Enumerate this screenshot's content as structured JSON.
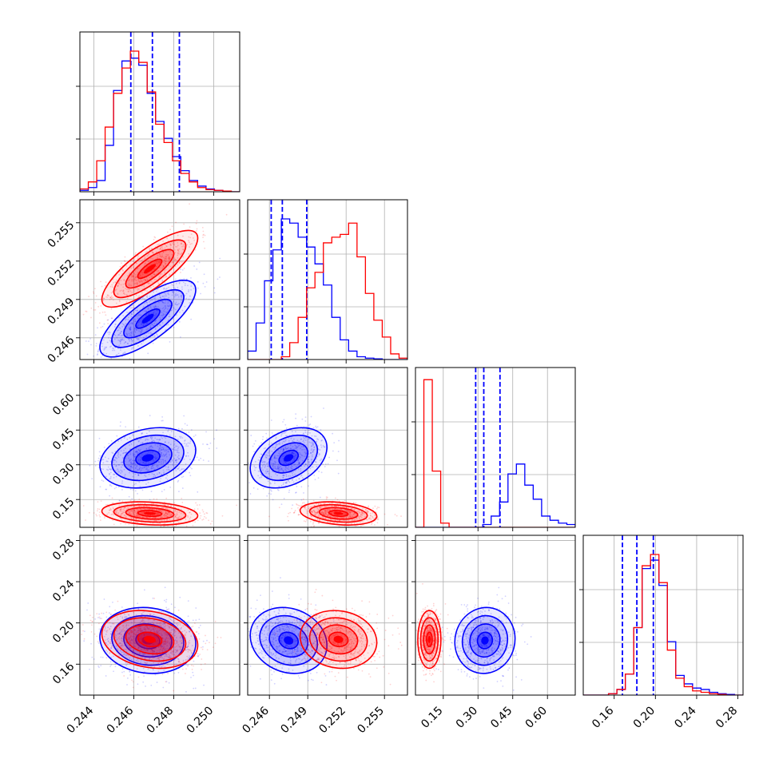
{
  "chart_data": {
    "type": "corner",
    "title": "",
    "parameters": [
      {
        "index": 0,
        "ticks": [
          0.244,
          0.246,
          0.248,
          0.25
        ],
        "tick_labels": [
          "0.244",
          "0.246",
          "0.248",
          "0.250"
        ],
        "range": [
          0.2433,
          0.2513
        ]
      },
      {
        "index": 1,
        "ticks": [
          0.246,
          0.249,
          0.252,
          0.255
        ],
        "tick_labels": [
          "0.246",
          "0.249",
          "0.252",
          "0.255"
        ],
        "range": [
          0.2443,
          0.2568
        ]
      },
      {
        "index": 2,
        "ticks": [
          0.15,
          0.3,
          0.45,
          0.6
        ],
        "tick_labels": [
          "0.15",
          "0.30",
          "0.45",
          "0.60"
        ],
        "range": [
          0.03,
          0.72
        ]
      },
      {
        "index": 3,
        "ticks": [
          0.16,
          0.2,
          0.24,
          0.28
        ],
        "tick_labels": [
          "0.16",
          "0.20",
          "0.24",
          "0.28"
        ],
        "range": [
          0.13,
          0.285
        ]
      }
    ],
    "series": [
      {
        "color": "#0000ff",
        "means": [
          0.2467,
          0.2475,
          0.33,
          0.183
        ],
        "sigmas": [
          0.0012,
          0.0015,
          0.065,
          0.016
        ],
        "correlations": {
          "0-1": 0.75,
          "0-2": 0.25,
          "0-3": -0.1,
          "1-2": 0.35,
          "1-3": -0.15,
          "2-3": 0.05
        },
        "quantile_lines": [
          [
            0.24585,
            0.24693,
            0.24828
          ],
          [
            0.24614,
            0.24701,
            0.24892
          ],
          [
            0.29,
            0.325,
            0.395
          ],
          [
            0.168,
            0.182,
            0.198
          ]
        ],
        "histograms": [
          [
            0.01,
            0.03,
            0.08,
            0.33,
            0.72,
            0.93,
            0.95,
            0.9,
            0.7,
            0.5,
            0.38,
            0.25,
            0.15,
            0.08,
            0.04,
            0.02,
            0.01,
            0.005,
            0.0
          ],
          [
            0.06,
            0.26,
            0.56,
            0.78,
            1.0,
            0.97,
            0.87,
            0.8,
            0.68,
            0.53,
            0.3,
            0.14,
            0.06,
            0.02,
            0.01,
            0.005,
            0.0,
            0.0,
            0.0
          ],
          [
            0.0,
            0.0,
            0.0,
            0.0,
            0.0,
            0.0,
            0.0,
            0.0,
            0.02,
            0.08,
            0.18,
            0.38,
            0.45,
            0.3,
            0.2,
            0.08,
            0.05,
            0.03,
            0.02
          ],
          [
            0.0,
            0.0,
            0.0,
            0.01,
            0.04,
            0.15,
            0.48,
            0.9,
            0.96,
            0.78,
            0.38,
            0.14,
            0.08,
            0.05,
            0.04,
            0.02,
            0.01,
            0.005,
            0.0
          ]
        ]
      },
      {
        "color": "#ff0000",
        "means": [
          0.2468,
          0.2514,
          0.09,
          0.184
        ],
        "sigmas": [
          0.0012,
          0.0015,
          0.025,
          0.014
        ],
        "correlations": {
          "0-1": 0.8,
          "0-2": -0.2,
          "0-3": -0.2,
          "1-2": -0.25,
          "1-3": -0.1,
          "2-3": 0.0
        },
        "histograms": [
          [
            0.02,
            0.07,
            0.22,
            0.46,
            0.7,
            0.88,
            1.0,
            0.92,
            0.71,
            0.48,
            0.35,
            0.22,
            0.13,
            0.07,
            0.03,
            0.015,
            0.01,
            0.005,
            0.0
          ],
          [
            0.0,
            0.0,
            0.0,
            0.0,
            0.02,
            0.12,
            0.3,
            0.51,
            0.62,
            0.83,
            0.87,
            0.89,
            0.97,
            0.73,
            0.47,
            0.28,
            0.16,
            0.04,
            0.01
          ],
          [
            0.0,
            1.05,
            0.4,
            0.03,
            0.0,
            0.0,
            0.0,
            0.0,
            0.0,
            0.0,
            0.0,
            0.0,
            0.0,
            0.0,
            0.0,
            0.0,
            0.0,
            0.0,
            0.0
          ],
          [
            0.0,
            0.0,
            0.0,
            0.01,
            0.04,
            0.15,
            0.48,
            0.92,
            1.0,
            0.8,
            0.32,
            0.12,
            0.06,
            0.03,
            0.02,
            0.01,
            0.005,
            0.0,
            0.0
          ]
        ]
      }
    ],
    "grid": true,
    "legend": "none"
  }
}
